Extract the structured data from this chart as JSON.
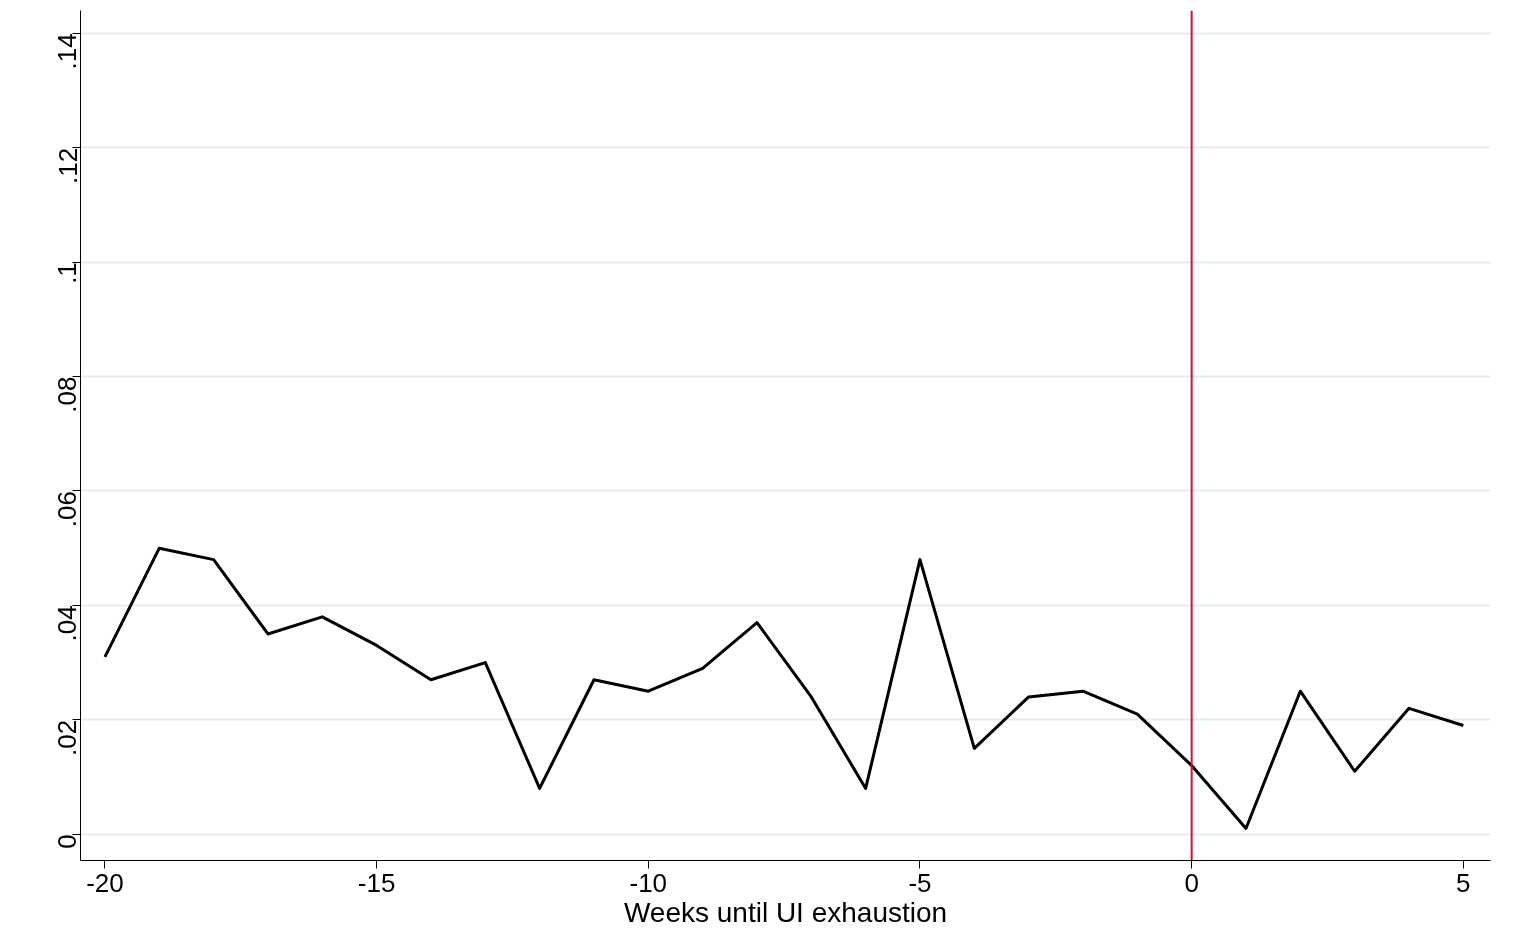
{
  "chart_data": {
    "type": "line",
    "xlabel": "Weeks until UI exhaustion",
    "x": [
      -20,
      -19,
      -18,
      -17,
      -16,
      -15,
      -14,
      -13,
      -12,
      -11,
      -10,
      -9,
      -8,
      -7,
      -6,
      -5,
      -4,
      -3,
      -2,
      -1,
      0,
      1,
      2,
      3,
      4,
      5
    ],
    "series": [
      {
        "color": "#000000",
        "values": [
          0.031,
          0.05,
          0.048,
          0.035,
          0.038,
          0.033,
          0.027,
          0.03,
          0.008,
          0.027,
          0.025,
          0.029,
          0.037,
          0.024,
          0.008,
          0.048,
          0.015,
          0.024,
          0.025,
          0.021,
          0.012,
          0.001,
          0.025,
          0.011,
          0.022,
          0.019
        ]
      }
    ],
    "xlim": [
      -20.45,
      5.5
    ],
    "ylim": [
      -0.0046,
      0.144
    ],
    "xticks": [
      -20,
      -15,
      -10,
      -5,
      0,
      5
    ],
    "yticks": [
      {
        "value": 0,
        "label": "0"
      },
      {
        "value": 0.02,
        "label": ".02"
      },
      {
        "value": 0.04,
        "label": ".04"
      },
      {
        "value": 0.06,
        "label": ".06"
      },
      {
        "value": 0.08,
        "label": ".08"
      },
      {
        "value": 0.1,
        "label": ".1"
      },
      {
        "value": 0.12,
        "label": ".12"
      },
      {
        "value": 0.14,
        "label": ".14"
      }
    ],
    "grid": "y",
    "marker": "none",
    "line_style": "solid",
    "ref_lines": [
      {
        "axis": "x",
        "value": 0,
        "color": "#d0103a"
      }
    ]
  }
}
